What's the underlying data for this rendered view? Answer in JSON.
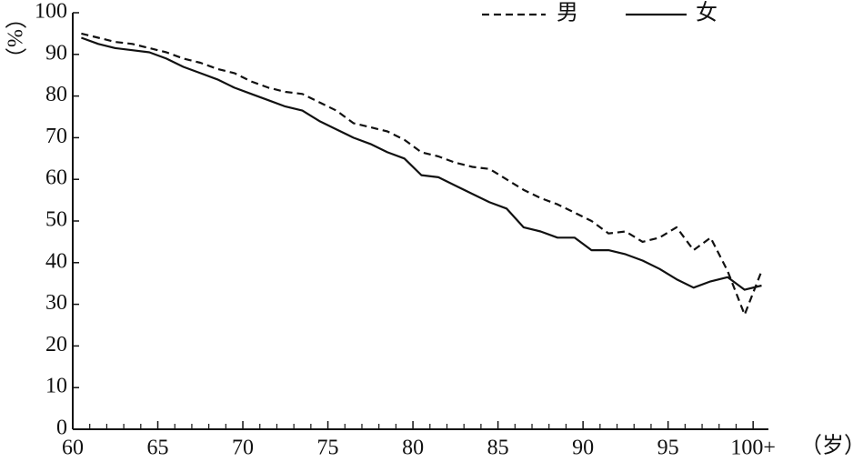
{
  "chart_data": {
    "type": "line",
    "ylabel": "（%）",
    "xlabel": "（岁）",
    "x": [
      60.5,
      61.5,
      62.5,
      63.5,
      64.5,
      65.5,
      66.5,
      67.5,
      68.5,
      69.5,
      70.5,
      71.5,
      72.5,
      73.5,
      74.5,
      75.5,
      76.5,
      77.5,
      78.5,
      79.5,
      80.5,
      81.5,
      82.5,
      83.5,
      84.5,
      85.5,
      86.5,
      87.5,
      88.5,
      89.5,
      90.5,
      91.5,
      92.5,
      93.5,
      94.5,
      95.5,
      96.5,
      97.5,
      98.5,
      99.5,
      100.5
    ],
    "series": [
      {
        "name": "男",
        "color": "#111111",
        "dash": true,
        "values": [
          95,
          94,
          93,
          92.5,
          91.5,
          90.5,
          89,
          88,
          86.5,
          85.5,
          83.5,
          82,
          81,
          80.5,
          78.5,
          76.5,
          73.5,
          72.5,
          71.5,
          69.5,
          66.5,
          65.5,
          64,
          63,
          62.5,
          60,
          57.5,
          55.5,
          54,
          52,
          50,
          47,
          47.5,
          45,
          46,
          48.5,
          43,
          46,
          38,
          27.5,
          38
        ]
      },
      {
        "name": "女",
        "color": "#111111",
        "dash": false,
        "values": [
          94,
          92.5,
          91.5,
          91,
          90.5,
          89,
          87,
          85.5,
          84,
          82,
          80.5,
          79,
          77.5,
          76.5,
          74,
          72,
          70,
          68.5,
          66.5,
          65,
          61,
          60.5,
          58.5,
          56.5,
          54.5,
          53,
          48.5,
          47.5,
          46,
          46,
          43,
          43,
          42,
          40.5,
          38.5,
          36,
          34,
          35.5,
          36.5,
          33.5,
          34.5
        ]
      }
    ],
    "xlim": [
      60,
      100.9
    ],
    "ylim": [
      0,
      100
    ],
    "xticks": [
      60,
      65,
      70,
      75,
      80,
      85,
      90,
      95,
      {
        "value": 100,
        "label": "100+"
      }
    ],
    "xminorticks": [
      61,
      62,
      63,
      64,
      66,
      67,
      68,
      69,
      71,
      72,
      73,
      74,
      76,
      77,
      78,
      79,
      81,
      82,
      83,
      84,
      86,
      87,
      88,
      89,
      91,
      92,
      93,
      94,
      96,
      97,
      98,
      99
    ],
    "yticks": [
      0,
      10,
      20,
      30,
      40,
      50,
      60,
      70,
      80,
      90,
      100
    ],
    "legend": "top-right",
    "grid": false
  }
}
